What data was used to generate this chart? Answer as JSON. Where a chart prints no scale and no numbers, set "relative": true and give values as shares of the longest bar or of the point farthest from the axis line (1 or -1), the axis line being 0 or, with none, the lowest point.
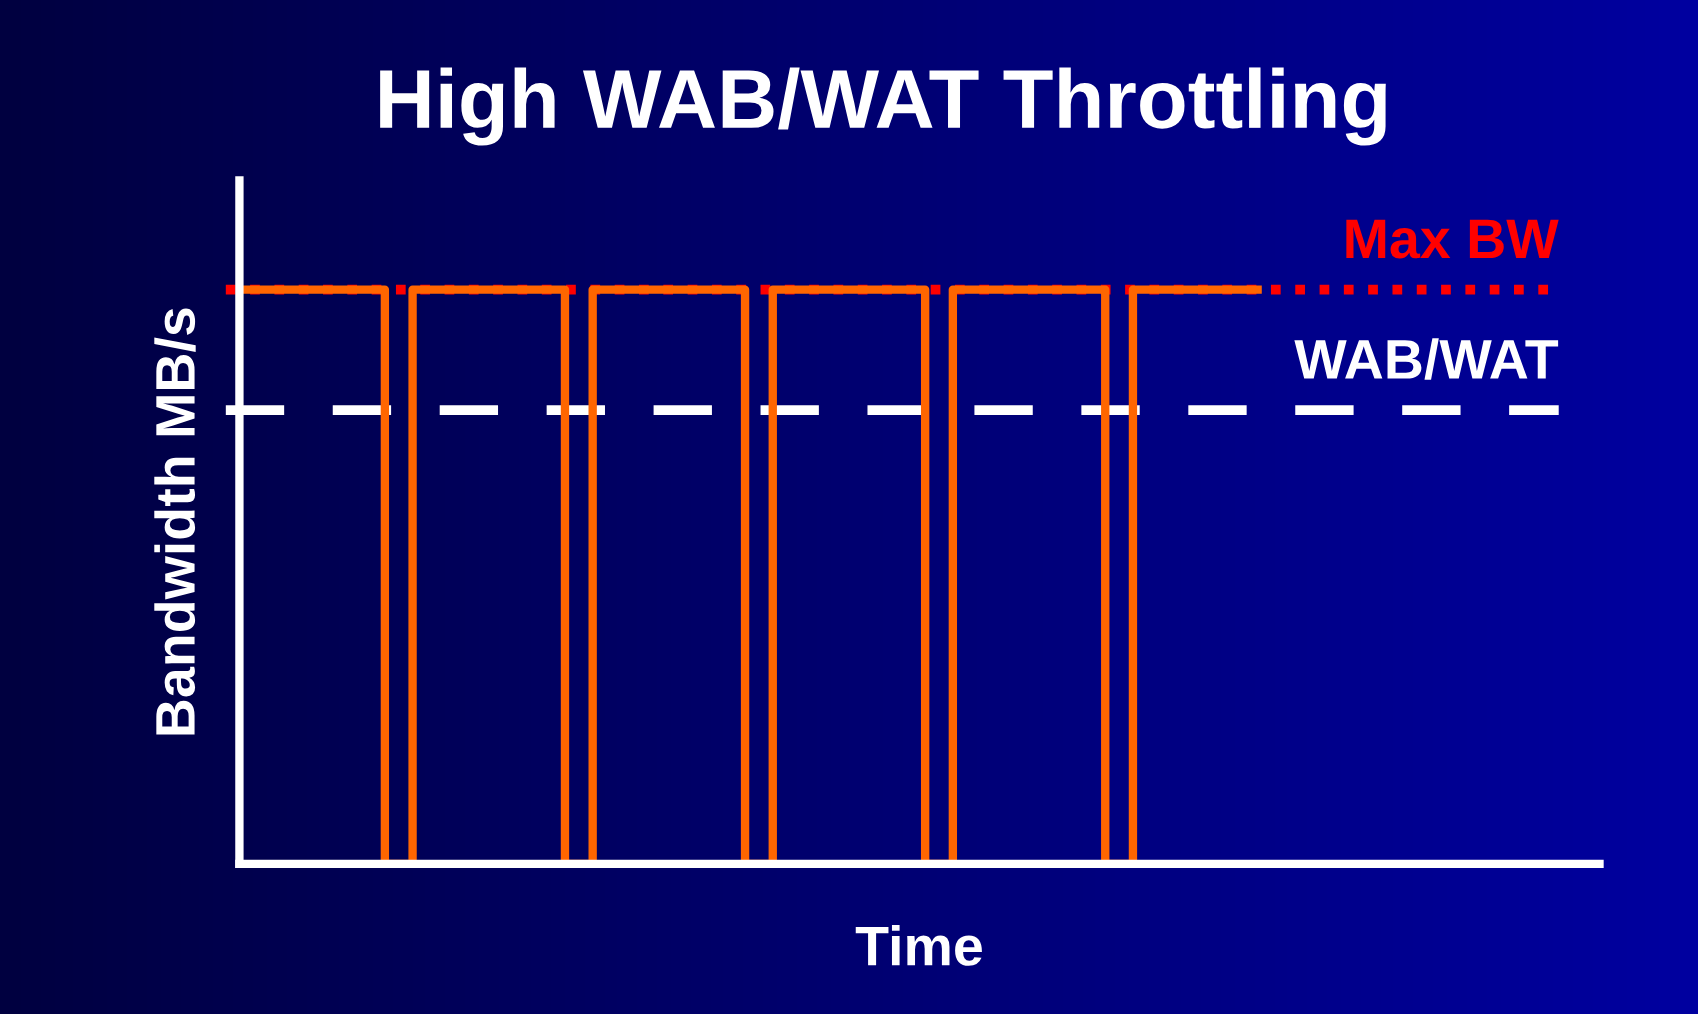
{
  "chart_data": {
    "type": "step",
    "title": "High WAB/WAT Throttling",
    "xlabel": "Time",
    "ylabel": "Bandwidth MB/s",
    "relative": true,
    "categories": [
      null,
      null,
      null,
      null,
      null,
      null,
      null,
      null,
      null,
      null,
      null,
      null,
      null,
      null,
      null,
      null,
      null,
      null,
      null,
      null,
      null,
      null,
      null,
      null,
      null,
      null,
      null,
      null,
      null,
      null,
      null,
      null,
      null,
      null,
      null,
      null,
      null,
      null,
      null,
      null,
      null,
      null,
      null,
      null,
      null,
      null,
      null,
      null,
      null,
      null,
      null,
      null,
      null,
      null,
      null,
      null,
      null,
      null,
      null,
      null,
      null,
      null,
      null,
      null,
      null,
      null,
      null,
      null,
      null,
      null,
      null,
      null,
      null,
      null
    ],
    "series": [
      {
        "color": "#ff6600",
        "values": [
          1,
          1,
          1,
          1,
          1,
          1,
          1,
          1,
          1,
          1,
          0,
          0,
          1,
          1,
          1,
          1,
          1,
          1,
          1,
          1,
          1,
          1,
          1,
          0,
          0,
          1,
          1,
          1,
          1,
          1,
          1,
          1,
          1,
          1,
          1,
          1,
          0,
          0,
          1,
          1,
          1,
          1,
          1,
          1,
          1,
          1,
          1,
          1,
          1,
          0,
          0,
          1,
          1,
          1,
          1,
          1,
          1,
          1,
          1,
          1,
          1,
          1,
          0,
          0,
          1,
          1,
          1,
          1,
          1,
          1,
          1,
          1,
          1,
          1
        ]
      }
    ],
    "ref_lines": [
      {
        "axis": "y",
        "value": 1,
        "label": "Max BW",
        "color": "#ff0000",
        "line_style": "dotted"
      },
      {
        "axis": "y",
        "value": 0.79,
        "label": "WAB/WAT",
        "color": "#ffffff",
        "line_style": "dashed"
      }
    ],
    "legend": false,
    "line_style": "solid",
    "marker": "none"
  }
}
